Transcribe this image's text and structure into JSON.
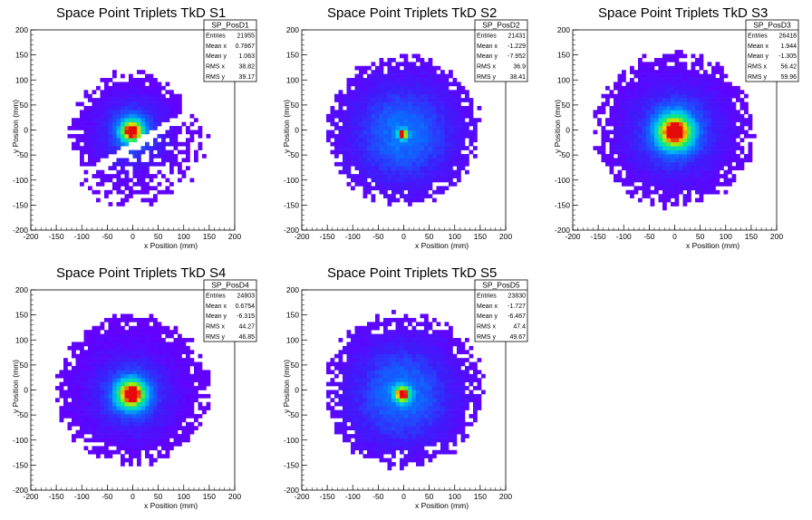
{
  "chart_data": [
    {
      "type": "heatmap",
      "title": "Space Point Triplets TkD S1",
      "xlabel": "x Position (mm)",
      "ylabel": "y Position (mm)",
      "xlim": [
        -200,
        200
      ],
      "ylim": [
        -200,
        200
      ],
      "xticks": [
        -200,
        -150,
        -100,
        -50,
        0,
        50,
        100,
        150,
        200
      ],
      "yticks": [
        -200,
        -150,
        -100,
        -50,
        0,
        50,
        100,
        150,
        200
      ],
      "grid": false,
      "stats_position": "top-right",
      "stats": {
        "name": "SP_PosD1",
        "rows": [
          {
            "label": "Entries",
            "value": "21955"
          },
          {
            "label": "Mean x",
            "value": "0.7867"
          },
          {
            "label": "Mean y",
            "value": "1.063"
          },
          {
            "label": "RMS x",
            "value": "38.82"
          },
          {
            "label": "RMS y",
            "value": "39.17"
          }
        ]
      },
      "distribution": {
        "cx": -2,
        "cy": -2,
        "core_sigma": 14,
        "halo_sigma": 42,
        "extent_radius": 110,
        "feature": "diagonal-gap"
      }
    },
    {
      "type": "heatmap",
      "title": "Space Point Triplets TkD S2",
      "xlabel": "x Position (mm)",
      "ylabel": "y Position (mm)",
      "xlim": [
        -200,
        200
      ],
      "ylim": [
        -200,
        200
      ],
      "xticks": [
        -200,
        -150,
        -100,
        -50,
        0,
        50,
        100,
        150,
        200
      ],
      "yticks": [
        -200,
        -150,
        -100,
        -50,
        0,
        50,
        100,
        150,
        200
      ],
      "grid": false,
      "stats_position": "top-right",
      "stats": {
        "name": "SP_PosD2",
        "rows": [
          {
            "label": "Entries",
            "value": "21431"
          },
          {
            "label": "Mean x",
            "value": "-1.229"
          },
          {
            "label": "Mean y",
            "value": "-7.952"
          },
          {
            "label": "RMS x",
            "value": "36.9"
          },
          {
            "label": "RMS y",
            "value": "38.41"
          }
        ]
      },
      "distribution": {
        "cx": -2,
        "cy": -8,
        "core_sigma": 6,
        "halo_sigma": 70,
        "extent_radius": 150,
        "feature": "narrow-core"
      }
    },
    {
      "type": "heatmap",
      "title": "Space Point Triplets TkD S3",
      "xlabel": "x Position (mm)",
      "ylabel": "y Position (mm)",
      "xlim": [
        -200,
        200
      ],
      "ylim": [
        -200,
        200
      ],
      "xticks": [
        -200,
        -150,
        -100,
        -50,
        0,
        50,
        100,
        150,
        200
      ],
      "yticks": [
        -200,
        -150,
        -100,
        -50,
        0,
        50,
        100,
        150,
        200
      ],
      "grid": false,
      "stats_position": "top-right",
      "stats": {
        "name": "SP_PosD3",
        "rows": [
          {
            "label": "Entries",
            "value": "26418"
          },
          {
            "label": "Mean x",
            "value": "1.944"
          },
          {
            "label": "Mean y",
            "value": "-1.305"
          },
          {
            "label": "RMS x",
            "value": "56.42"
          },
          {
            "label": "RMS y",
            "value": "59.96"
          }
        ]
      },
      "distribution": {
        "cx": 0,
        "cy": -3,
        "core_sigma": 22,
        "halo_sigma": 60,
        "extent_radius": 155,
        "feature": "broad"
      }
    },
    {
      "type": "heatmap",
      "title": "Space Point Triplets TkD S4",
      "xlabel": "x Position (mm)",
      "ylabel": "y Position (mm)",
      "xlim": [
        -200,
        200
      ],
      "ylim": [
        -200,
        200
      ],
      "xticks": [
        -200,
        -150,
        -100,
        -50,
        0,
        50,
        100,
        150,
        200
      ],
      "yticks": [
        -200,
        -150,
        -100,
        -50,
        0,
        50,
        100,
        150,
        200
      ],
      "grid": false,
      "stats_position": "top-right",
      "stats": {
        "name": "SP_PosD4",
        "rows": [
          {
            "label": "Entries",
            "value": "24803"
          },
          {
            "label": "Mean x",
            "value": "0.6754"
          },
          {
            "label": "Mean y",
            "value": "-6.315"
          },
          {
            "label": "RMS x",
            "value": "44.27"
          },
          {
            "label": "RMS y",
            "value": "46.85"
          }
        ]
      },
      "distribution": {
        "cx": -3,
        "cy": -8,
        "core_sigma": 18,
        "halo_sigma": 50,
        "extent_radius": 150,
        "feature": "broad"
      }
    },
    {
      "type": "heatmap",
      "title": "Space Point Triplets TkD S5",
      "xlabel": "x Position (mm)",
      "ylabel": "y Position (mm)",
      "xlim": [
        -200,
        200
      ],
      "ylim": [
        -200,
        200
      ],
      "xticks": [
        -200,
        -150,
        -100,
        -50,
        0,
        50,
        100,
        150,
        200
      ],
      "yticks": [
        -200,
        -150,
        -100,
        -50,
        0,
        50,
        100,
        150,
        200
      ],
      "grid": false,
      "stats_position": "top-right",
      "stats": {
        "name": "SP_PosD5",
        "rows": [
          {
            "label": "Entries",
            "value": "23830"
          },
          {
            "label": "Mean x",
            "value": "-1.727"
          },
          {
            "label": "Mean y",
            "value": "-6.467"
          },
          {
            "label": "RMS x",
            "value": "47.4"
          },
          {
            "label": "RMS y",
            "value": "49.67"
          }
        ]
      },
      "distribution": {
        "cx": -3,
        "cy": -8,
        "core_sigma": 10,
        "halo_sigma": 70,
        "extent_radius": 155,
        "feature": "narrow-core"
      }
    }
  ]
}
